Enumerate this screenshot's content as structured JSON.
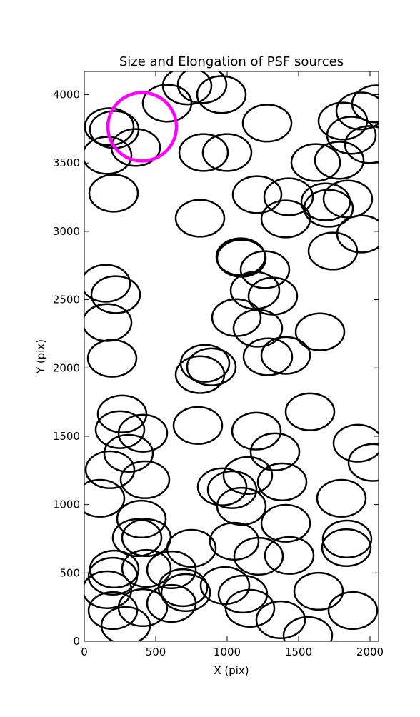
{
  "chart_data": {
    "type": "ellipse",
    "title": "Size and Elongation of PSF sources",
    "x_label": "X (pix)",
    "y_label": "Y (pix)",
    "xlim": [
      0,
      2060
    ],
    "ylim": [
      0,
      4170
    ],
    "xticks": [
      0,
      500,
      1000,
      1500,
      2000
    ],
    "yticks": [
      0,
      500,
      1000,
      1500,
      2000,
      2500,
      3000,
      3500,
      4000
    ],
    "series": [
      {
        "color": "#000000",
        "width": 340,
        "height": 270,
        "x": [
          175,
          210,
          160,
          360,
          580,
          720,
          825,
          960,
          835,
          1000,
          1280,
          205,
          810,
          1210,
          1430,
          1410,
          1620,
          1785,
          1810,
          1870,
          1935,
          1995,
          2045,
          1690,
          1845,
          1710,
          1740,
          1940,
          1095,
          1100,
          1265,
          1195,
          1320,
          1065,
          1215,
          150,
          220,
          160,
          195,
          1650,
          1285,
          1410,
          845,
          890,
          810,
          265,
          250,
          410,
          310,
          180,
          110,
          425,
          795,
          1205,
          1335,
          965,
          1035,
          1145,
          1100,
          1385,
          1580,
          1915,
          2020,
          1800,
          1840,
          1835,
          1410,
          400,
          370,
          435,
          750,
          1050,
          1220,
          1435,
          210,
          200,
          435,
          610,
          690,
          710,
          610,
          160,
          200,
          410,
          290,
          985,
          1110,
          1160,
          1375,
          1565,
          1640,
          1880
        ],
        "y": [
          3766,
          3745,
          3556,
          3614,
          3938,
          4064,
          4074,
          4001,
          3577,
          3577,
          3792,
          3279,
          3096,
          3269,
          3253,
          3091,
          3504,
          3520,
          3807,
          3703,
          3881,
          3635,
          3933,
          3216,
          3237,
          3169,
          2856,
          2981,
          2814,
          2803,
          2720,
          2568,
          2526,
          2369,
          2291,
          2620,
          2537,
          2333,
          2071,
          2265,
          2082,
          2092,
          2034,
          2008,
          1951,
          1663,
          1548,
          1522,
          1375,
          1255,
          1046,
          1182,
          1579,
          1538,
          1386,
          1130,
          1109,
          1213,
          988,
          1166,
          1679,
          1449,
          1308,
          1046,
          748,
          685,
          863,
          894,
          758,
          758,
          680,
          732,
          622,
          628,
          528,
          476,
          533,
          523,
          392,
          356,
          277,
          377,
          225,
          246,
          115,
          408,
          345,
          241,
          157,
          42,
          366,
          225
        ]
      },
      {
        "color": "#ff00ff",
        "width": 480,
        "height": 500,
        "x": [
          405
        ],
        "y": [
          3765
        ]
      }
    ]
  }
}
